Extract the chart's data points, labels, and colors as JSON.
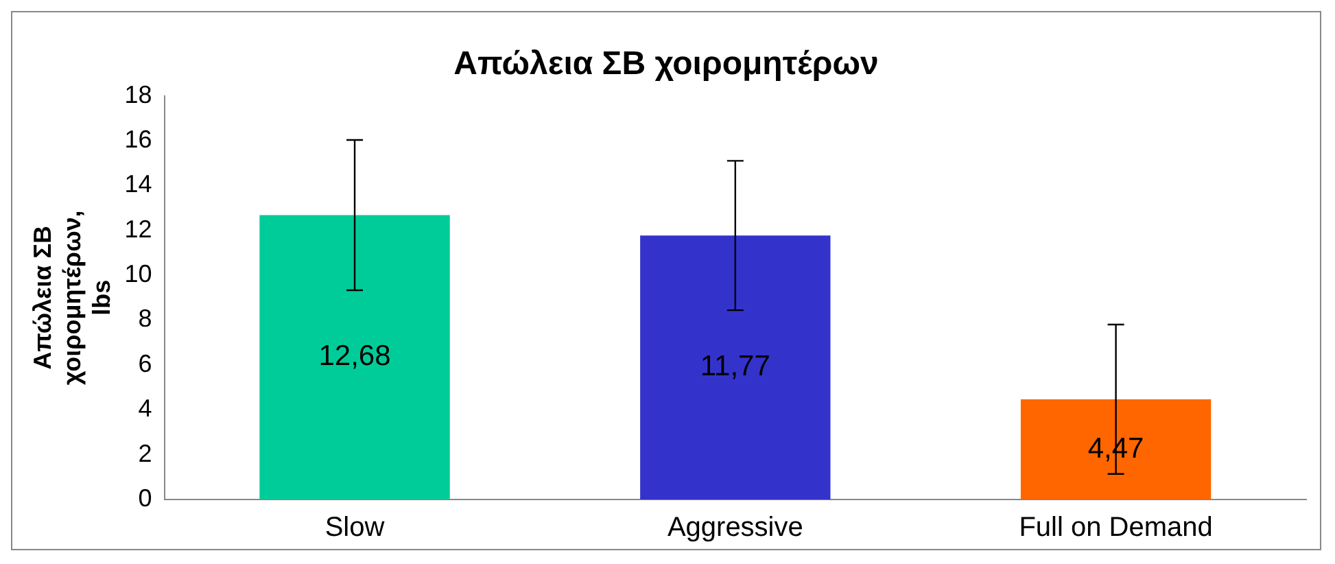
{
  "chart_data": {
    "type": "bar",
    "title": "Απώλεια ΣΒ χοιρομητέρων",
    "ylabel": "Απώλεια ΣΒ χοιρομητέρων, lbs",
    "categories": [
      "Slow",
      "Aggressive",
      "Full on Demand"
    ],
    "values": [
      12.68,
      11.77,
      4.47
    ],
    "colors": [
      "#00cc99",
      "#3333cc",
      "#ff6600"
    ],
    "errors": [
      3.35,
      3.33,
      3.33
    ],
    "value_labels": [
      "12,68",
      "11,77",
      "4,47"
    ],
    "ylim": [
      0,
      18
    ],
    "yticks": [
      0,
      2,
      4,
      6,
      8,
      10,
      12,
      14,
      16,
      18
    ],
    "grid": false,
    "legend": false
  }
}
